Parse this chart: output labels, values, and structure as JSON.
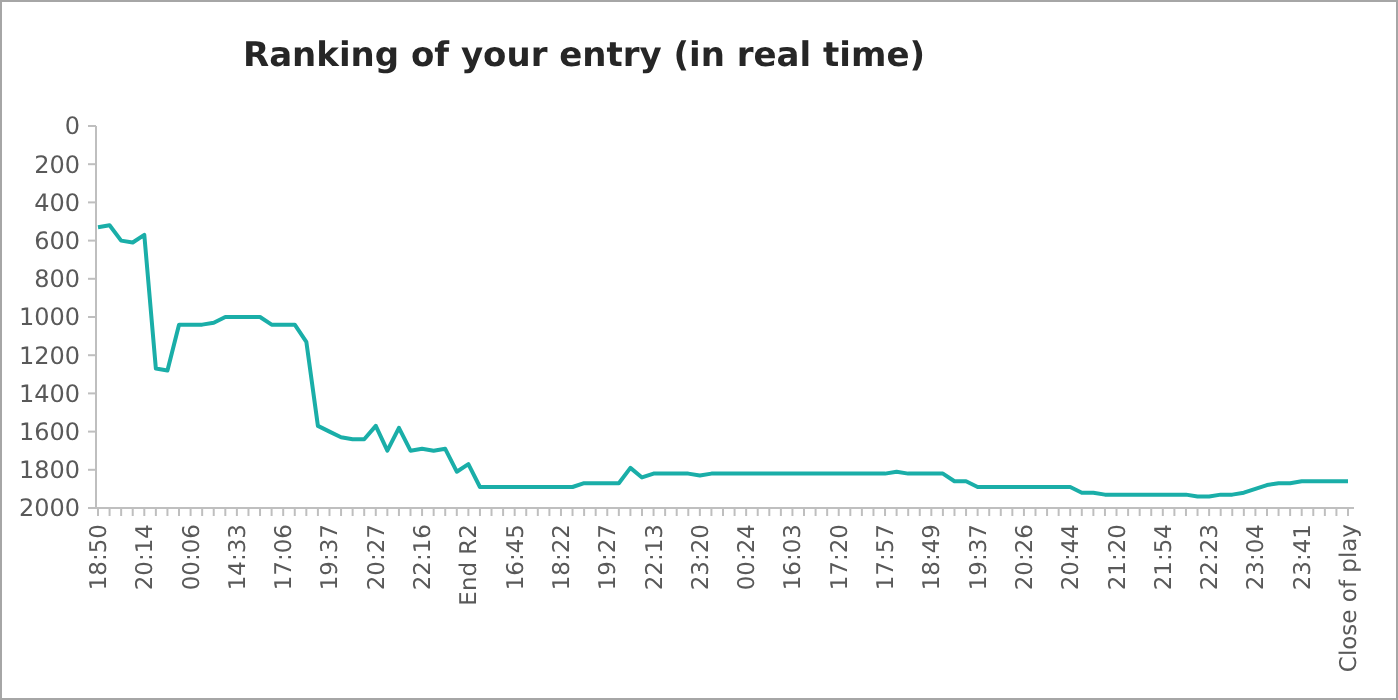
{
  "chart_data": {
    "type": "line",
    "title": "Ranking of your entry (in real time)",
    "categories": [
      "18:50",
      null,
      null,
      null,
      "20:14",
      null,
      null,
      null,
      "00:06",
      null,
      null,
      null,
      "14:33",
      null,
      null,
      null,
      "17:06",
      null,
      null,
      null,
      "19:37",
      null,
      null,
      null,
      "20:27",
      null,
      null,
      null,
      "22:16",
      null,
      null,
      null,
      "End R2",
      null,
      null,
      null,
      "16:45",
      null,
      null,
      null,
      "18:22",
      null,
      null,
      null,
      "19:27",
      null,
      null,
      null,
      "22:13",
      null,
      null,
      null,
      "23:20",
      null,
      null,
      null,
      "00:24",
      null,
      null,
      null,
      "16:03",
      null,
      null,
      null,
      "17:20",
      null,
      null,
      null,
      "17:57",
      null,
      null,
      null,
      "18:49",
      null,
      null,
      null,
      "19:37",
      null,
      null,
      null,
      "20:26",
      null,
      null,
      null,
      "20:44",
      null,
      null,
      null,
      "21:20",
      null,
      null,
      null,
      "21:54",
      null,
      null,
      null,
      "22:23",
      null,
      null,
      null,
      "23:04",
      null,
      null,
      null,
      "23:41",
      null,
      null,
      null,
      "Close of play"
    ],
    "series": [
      {
        "color": "#1aaea8",
        "values": [
          530,
          520,
          600,
          610,
          570,
          1270,
          1280,
          1040,
          1040,
          1040,
          1030,
          1000,
          1000,
          1000,
          1000,
          1040,
          1040,
          1040,
          1130,
          1570,
          1600,
          1630,
          1640,
          1640,
          1570,
          1700,
          1580,
          1700,
          1690,
          1700,
          1690,
          1810,
          1770,
          1890,
          1890,
          1890,
          1890,
          1890,
          1890,
          1890,
          1890,
          1890,
          1870,
          1870,
          1870,
          1870,
          1790,
          1840,
          1820,
          1820,
          1820,
          1820,
          1830,
          1820,
          1820,
          1820,
          1820,
          1820,
          1820,
          1820,
          1820,
          1820,
          1820,
          1820,
          1820,
          1820,
          1820,
          1820,
          1820,
          1810,
          1820,
          1820,
          1820,
          1820,
          1860,
          1860,
          1890,
          1890,
          1890,
          1890,
          1890,
          1890,
          1890,
          1890,
          1890,
          1920,
          1920,
          1930,
          1930,
          1930,
          1930,
          1930,
          1930,
          1930,
          1930,
          1940,
          1940,
          1930,
          1930,
          1920,
          1900,
          1880,
          1870,
          1870,
          1860,
          1860,
          1860,
          1860,
          1860
        ]
      }
    ],
    "ylim": [
      2000,
      0
    ],
    "yticks": [
      0,
      200,
      400,
      600,
      800,
      1000,
      1200,
      1400,
      1600,
      1800,
      2000
    ],
    "grid": false,
    "marker": "none",
    "line_style": "solid"
  }
}
